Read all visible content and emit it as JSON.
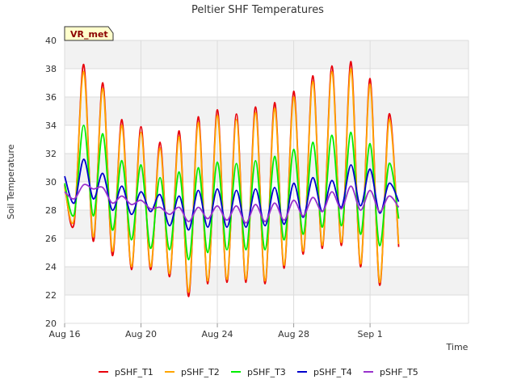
{
  "chart_data": {
    "type": "line",
    "title": "Peltier SHF Temperatures",
    "xlabel": "Time",
    "ylabel": "Soil Temperature",
    "site_badge": "VR_met",
    "ylim": [
      20,
      40
    ],
    "yticks": [
      20,
      22,
      24,
      26,
      28,
      30,
      32,
      34,
      36,
      38,
      40
    ],
    "xlim": [
      "2023-08-16",
      "2023-09-04"
    ],
    "xticks": [
      {
        "label": "Aug 16",
        "date": "2023-08-16"
      },
      {
        "label": "Aug 20",
        "date": "2023-08-20"
      },
      {
        "label": "Aug 24",
        "date": "2023-08-24"
      },
      {
        "label": "Aug 28",
        "date": "2023-08-28"
      },
      {
        "label": "Sep 1",
        "date": "2023-09-01"
      }
    ],
    "grid": true,
    "legend_position": "bottom",
    "x": [
      "2023-08-16 00:00",
      "2023-08-16 12:00",
      "2023-08-17 00:00",
      "2023-08-17 12:00",
      "2023-08-18 00:00",
      "2023-08-18 12:00",
      "2023-08-19 00:00",
      "2023-08-19 12:00",
      "2023-08-20 00:00",
      "2023-08-20 12:00",
      "2023-08-21 00:00",
      "2023-08-21 12:00",
      "2023-08-22 00:00",
      "2023-08-22 12:00",
      "2023-08-23 00:00",
      "2023-08-23 12:00",
      "2023-08-24 00:00",
      "2023-08-24 12:00",
      "2023-08-25 00:00",
      "2023-08-25 12:00",
      "2023-08-26 00:00",
      "2023-08-26 12:00",
      "2023-08-27 00:00",
      "2023-08-27 12:00",
      "2023-08-28 00:00",
      "2023-08-28 12:00",
      "2023-08-29 00:00",
      "2023-08-29 12:00",
      "2023-08-30 00:00",
      "2023-08-30 12:00",
      "2023-08-31 00:00",
      "2023-08-31 12:00",
      "2023-09-01 00:00",
      "2023-09-01 12:00",
      "2023-09-02 00:00",
      "2023-09-02 12:00"
    ],
    "series": [
      {
        "name": "pSHF_T1",
        "color": "#e8000b",
        "values": [
          29.8,
          27.1,
          38.3,
          25.8,
          37.0,
          24.8,
          34.4,
          23.8,
          33.9,
          23.8,
          32.8,
          23.3,
          33.6,
          21.9,
          34.6,
          22.8,
          35.1,
          22.9,
          34.8,
          22.9,
          35.3,
          22.8,
          35.6,
          23.9,
          36.4,
          24.9,
          37.5,
          25.3,
          38.2,
          25.5,
          38.5,
          24.0,
          37.3,
          22.7,
          34.8,
          25.4
        ]
      },
      {
        "name": "pSHF_T2",
        "color": "#ffa500",
        "values": [
          29.6,
          27.4,
          37.8,
          26.1,
          36.6,
          25.1,
          34.0,
          24.0,
          33.5,
          24.0,
          32.4,
          23.5,
          33.2,
          22.2,
          34.2,
          23.0,
          34.7,
          23.1,
          34.4,
          23.1,
          34.9,
          23.0,
          35.2,
          24.1,
          36.0,
          25.1,
          37.1,
          25.5,
          37.8,
          25.7,
          38.0,
          24.2,
          36.9,
          22.9,
          34.4,
          25.6
        ]
      },
      {
        "name": "pSHF_T3",
        "color": "#00ee00",
        "values": [
          29.9,
          27.7,
          34.0,
          27.6,
          33.4,
          26.6,
          31.5,
          25.9,
          31.2,
          25.3,
          30.3,
          25.2,
          30.7,
          24.5,
          31.0,
          25.0,
          31.4,
          25.2,
          31.3,
          25.2,
          31.5,
          25.2,
          31.8,
          25.9,
          32.3,
          26.3,
          32.8,
          26.8,
          33.3,
          26.9,
          33.5,
          26.3,
          32.7,
          25.5,
          31.3,
          27.4
        ]
      },
      {
        "name": "pSHF_T4",
        "color": "#0000cc",
        "values": [
          30.4,
          28.5,
          31.6,
          28.8,
          30.6,
          28.0,
          29.7,
          27.7,
          29.3,
          27.9,
          29.1,
          26.9,
          29.0,
          26.6,
          29.4,
          26.8,
          29.5,
          26.8,
          29.4,
          26.8,
          29.5,
          26.9,
          29.6,
          27.0,
          29.9,
          27.5,
          30.3,
          27.9,
          30.1,
          28.2,
          31.2,
          28.3,
          30.9,
          27.8,
          29.9,
          28.6
        ]
      },
      {
        "name": "pSHF_T5",
        "color": "#9932cc",
        "values": [
          29.3,
          28.8,
          29.8,
          29.5,
          29.6,
          28.5,
          29.0,
          28.4,
          28.7,
          28.1,
          28.2,
          27.7,
          28.2,
          27.2,
          28.2,
          27.4,
          28.3,
          27.3,
          28.3,
          27.1,
          28.4,
          27.2,
          28.5,
          27.3,
          28.7,
          27.6,
          28.9,
          27.9,
          29.3,
          28.1,
          29.7,
          28.0,
          29.4,
          27.9,
          29.0,
          28.2
        ]
      }
    ]
  }
}
